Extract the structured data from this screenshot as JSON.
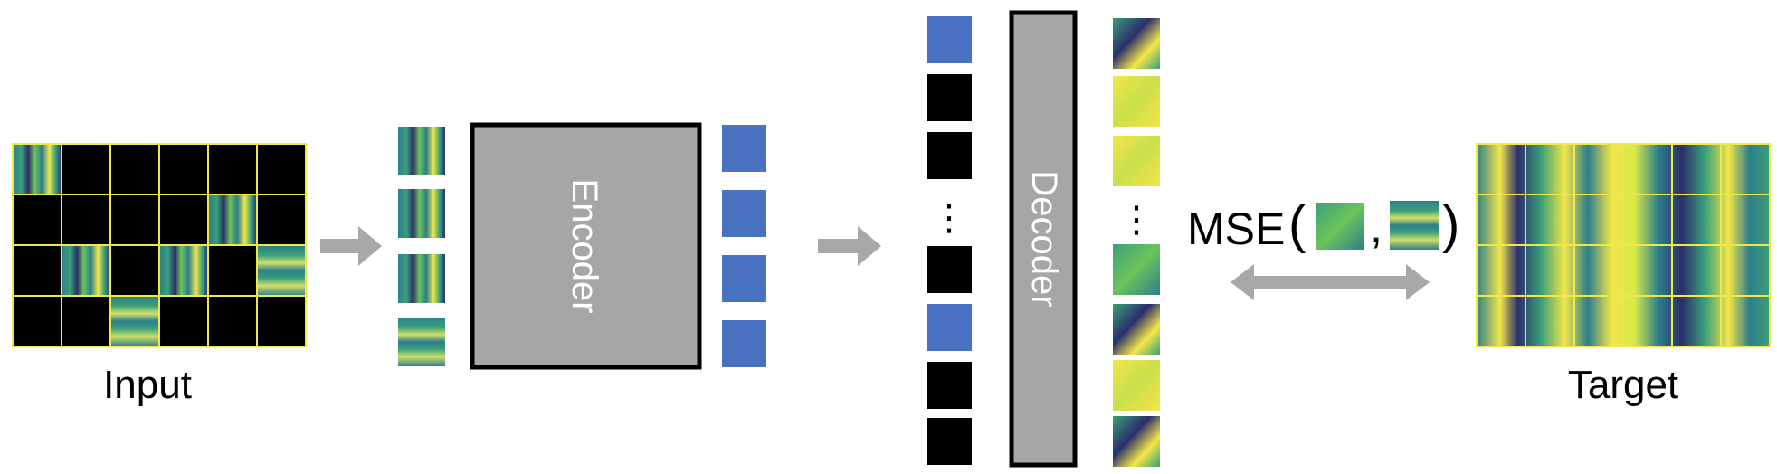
{
  "input": {
    "label": "Input",
    "visible_patches": [
      "r0c0",
      "r1c4",
      "r2c1",
      "r2c3",
      "r2c5",
      "r3c2"
    ]
  },
  "encoder": {
    "label": "Encoder"
  },
  "decoder": {
    "label": "Decoder"
  },
  "ellipsis": "⋮",
  "loss": {
    "prefix": "MSE",
    "open_paren": "(",
    "comma": ",",
    "close_paren": ")"
  },
  "target": {
    "label": "Target"
  },
  "colors": {
    "spectrogram_yellow": "#f3e64a",
    "spectrogram_green": "#3aa07a",
    "spectrogram_teal": "#2c7f8b",
    "spectrogram_navy": "#2b2f6b",
    "grid_line": "#f0e84a",
    "mask": "#000000",
    "token_blue": "#4a72c2",
    "block_gray": "#a6a6a6",
    "arrow_gray": "#a8a8a8"
  },
  "icons": [
    "right-arrow-icon",
    "double-arrow-icon"
  ]
}
